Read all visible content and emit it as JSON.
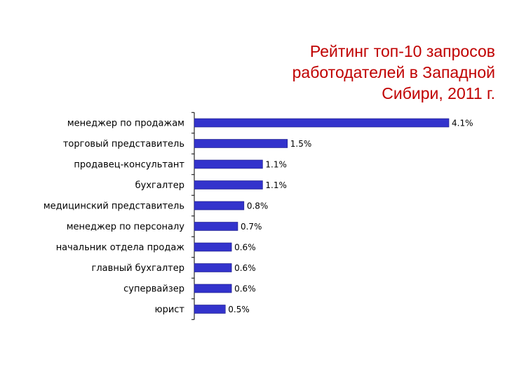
{
  "title_lines": [
    "Рейтинг топ-10 запросов",
    "работодателей в Западной",
    "Сибири, 2011 г."
  ],
  "colors": {
    "bar": "#3333cc",
    "title": "#c00000",
    "axis": "#000000"
  },
  "chart_data": {
    "type": "bar",
    "orientation": "horizontal",
    "title": "Рейтинг топ-10 запросов работодателей в Западной Сибири, 2011 г.",
    "categories": [
      "менеджер по продажам",
      "торговый представитель",
      "продавец-консультант",
      "бухгалтер",
      "медицинский представитель",
      "менеджер по персоналу",
      "начальник отдела продаж",
      "главный бухгалтер",
      "супервайзер",
      "юрист"
    ],
    "values": [
      4.1,
      1.5,
      1.1,
      1.1,
      0.8,
      0.7,
      0.6,
      0.6,
      0.6,
      0.5
    ],
    "value_labels": [
      "4.1%",
      "1.5%",
      "1.1%",
      "1.1%",
      "0.8%",
      "0.7%",
      "0.6%",
      "0.6%",
      "0.6%",
      "0.5%"
    ],
    "unit": "%",
    "xlim": [
      0,
      4.1
    ],
    "grid": false,
    "legend": "none"
  }
}
